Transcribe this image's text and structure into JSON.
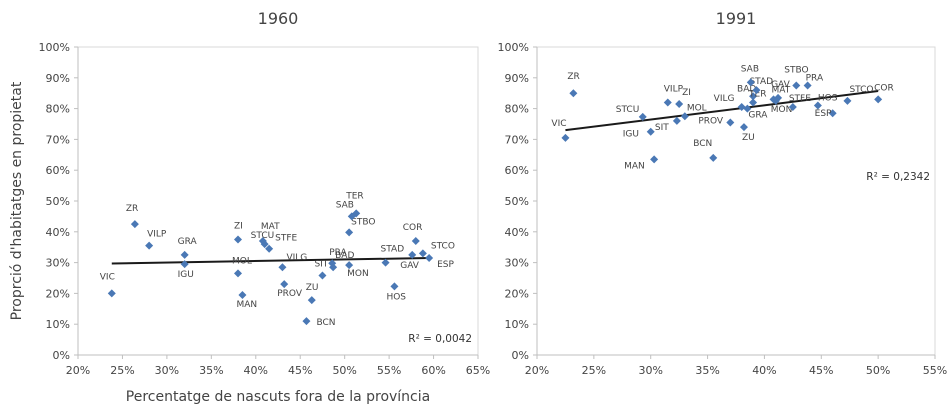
{
  "shared_ylabel": "Proprció d'habitatges en propietat",
  "shared_xlabel": "Percentatge de nascuts fora de la província",
  "marker_color": "#4a78b5",
  "trend_color": "#1a1a1a",
  "chart_data": [
    {
      "type": "scatter",
      "title": "1960",
      "xlim": [
        20,
        65
      ],
      "ylim": [
        0,
        100
      ],
      "xticks": [
        "20%",
        "25%",
        "30%",
        "35%",
        "40%",
        "45%",
        "50%",
        "55%",
        "60%",
        "65%"
      ],
      "yticks": [
        "0%",
        "10%",
        "20%",
        "30%",
        "40%",
        "50%",
        "60%",
        "70%",
        "80%",
        "90%",
        "100%"
      ],
      "xticks_vals": [
        20,
        25,
        30,
        35,
        40,
        45,
        50,
        55,
        60,
        65
      ],
      "yticks_vals": [
        0,
        10,
        20,
        30,
        40,
        50,
        60,
        70,
        80,
        90,
        100
      ],
      "r2": "R² = 0,0042",
      "trendline": {
        "x": [
          23.8,
          59.5
        ],
        "y": [
          29.7,
          31.5
        ]
      },
      "points": [
        {
          "label": "VIC",
          "x": 23.8,
          "y": 20.0
        },
        {
          "label": "ZR",
          "x": 26.4,
          "y": 42.5
        },
        {
          "label": "VILP",
          "x": 28.0,
          "y": 35.5
        },
        {
          "label": "GRA",
          "x": 32.0,
          "y": 32.5
        },
        {
          "label": "IGU",
          "x": 32.0,
          "y": 29.5
        },
        {
          "label": "ZI",
          "x": 38.0,
          "y": 37.5
        },
        {
          "label": "MOL",
          "x": 38.0,
          "y": 26.5
        },
        {
          "label": "MAN",
          "x": 38.5,
          "y": 19.5
        },
        {
          "label": "MAT",
          "x": 40.8,
          "y": 37.0
        },
        {
          "label": "STCU",
          "x": 41.0,
          "y": 36.0
        },
        {
          "label": "STFE",
          "x": 41.5,
          "y": 34.5
        },
        {
          "label": "VILG",
          "x": 43.0,
          "y": 28.5
        },
        {
          "label": "PROV",
          "x": 43.2,
          "y": 23.0
        },
        {
          "label": "BCN",
          "x": 45.7,
          "y": 11.0
        },
        {
          "label": "ZU",
          "x": 46.3,
          "y": 17.8
        },
        {
          "label": "SIT",
          "x": 47.5,
          "y": 25.8
        },
        {
          "label": "PRA",
          "x": 48.6,
          "y": 29.8
        },
        {
          "label": "BAD",
          "x": 48.7,
          "y": 28.5
        },
        {
          "label": "MON",
          "x": 50.5,
          "y": 29.2
        },
        {
          "label": "STBO",
          "x": 50.5,
          "y": 39.8
        },
        {
          "label": "SAB",
          "x": 50.8,
          "y": 45.0
        },
        {
          "label": "TER",
          "x": 51.3,
          "y": 46.0
        },
        {
          "label": "STAD",
          "x": 54.6,
          "y": 30.0
        },
        {
          "label": "HOS",
          "x": 55.6,
          "y": 22.3
        },
        {
          "label": "COR",
          "x": 58.0,
          "y": 37.0
        },
        {
          "label": "GAV",
          "x": 57.6,
          "y": 32.5
        },
        {
          "label": "STCO",
          "x": 58.8,
          "y": 33.0
        },
        {
          "label": "ESP",
          "x": 59.5,
          "y": 31.5
        }
      ]
    },
    {
      "type": "scatter",
      "title": "1991",
      "xlim": [
        20,
        55
      ],
      "ylim": [
        0,
        100
      ],
      "xticks": [
        "20%",
        "25%",
        "30%",
        "35%",
        "40%",
        "45%",
        "50%",
        "55%"
      ],
      "yticks": [
        "0%",
        "10%",
        "20%",
        "30%",
        "40%",
        "50%",
        "60%",
        "70%",
        "80%",
        "90%",
        "100%"
      ],
      "xticks_vals": [
        20,
        25,
        30,
        35,
        40,
        45,
        50,
        55
      ],
      "yticks_vals": [
        0,
        10,
        20,
        30,
        40,
        50,
        60,
        70,
        80,
        90,
        100
      ],
      "r2": "R² = 0,2342",
      "trendline": {
        "x": [
          22.5,
          50.0
        ],
        "y": [
          73.0,
          85.7
        ]
      },
      "points": [
        {
          "label": "VIC",
          "x": 22.5,
          "y": 70.5
        },
        {
          "label": "ZR",
          "x": 23.2,
          "y": 85.0
        },
        {
          "label": "STCU",
          "x": 29.3,
          "y": 77.3
        },
        {
          "label": "IGU",
          "x": 30.0,
          "y": 72.5
        },
        {
          "label": "MAN",
          "x": 30.3,
          "y": 63.5
        },
        {
          "label": "VILP",
          "x": 31.5,
          "y": 82.0
        },
        {
          "label": "SIT",
          "x": 32.3,
          "y": 76.0
        },
        {
          "label": "ZI",
          "x": 32.5,
          "y": 81.5
        },
        {
          "label": "MOL",
          "x": 33.0,
          "y": 77.5
        },
        {
          "label": "BCN",
          "x": 35.5,
          "y": 64.0
        },
        {
          "label": "PROV",
          "x": 37.0,
          "y": 75.5
        },
        {
          "label": "ZU",
          "x": 38.2,
          "y": 74.0
        },
        {
          "label": "VILG",
          "x": 38.0,
          "y": 80.5
        },
        {
          "label": "GRA",
          "x": 38.5,
          "y": 80.0
        },
        {
          "label": "BAD",
          "x": 39.0,
          "y": 84.0
        },
        {
          "label": "TER",
          "x": 39.0,
          "y": 82.0
        },
        {
          "label": "STAD",
          "x": 39.3,
          "y": 86.0
        },
        {
          "label": "SAB",
          "x": 38.8,
          "y": 88.5
        },
        {
          "label": "MAT",
          "x": 40.8,
          "y": 83.0
        },
        {
          "label": "GAV",
          "x": 41.2,
          "y": 83.5
        },
        {
          "label": "MON",
          "x": 41.0,
          "y": 82.5
        },
        {
          "label": "STFE",
          "x": 42.5,
          "y": 80.5
        },
        {
          "label": "STBO",
          "x": 42.8,
          "y": 87.5
        },
        {
          "label": "PRA",
          "x": 43.8,
          "y": 87.5
        },
        {
          "label": "HOS",
          "x": 44.7,
          "y": 81.0
        },
        {
          "label": "ESP",
          "x": 46.0,
          "y": 78.5
        },
        {
          "label": "STCO",
          "x": 47.3,
          "y": 82.5
        },
        {
          "label": "COR",
          "x": 50.0,
          "y": 83.0
        }
      ]
    }
  ]
}
